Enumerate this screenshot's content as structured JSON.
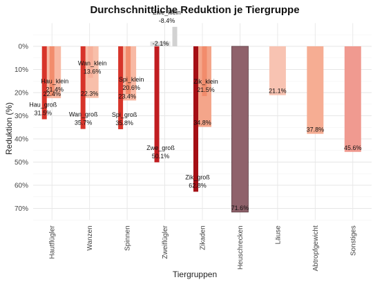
{
  "chart_data": {
    "type": "bar",
    "title": "Durchschnittliche Reduktion je Tiergruppe",
    "xlabel": "Tiergruppen",
    "ylabel": "Reduktion (%)",
    "y_direction": "reversed",
    "ylim": [
      -10,
      75
    ],
    "y_ticks": [
      "0%",
      "10%",
      "20%",
      "30%",
      "40%",
      "50%",
      "60%",
      "70%"
    ],
    "grid": true,
    "categories": [
      "Hautflügler",
      "Wanzen",
      "Spinnen",
      "Zweiflügler",
      "Zikaden",
      "Heuschrecken",
      "Läuse",
      "Abtropfgewicht",
      "Sonstiges"
    ],
    "series": [
      {
        "bars": [
          {
            "category": "Hautflügler",
            "label": "Hau_klein",
            "value": 21.4,
            "value_label": "21.4%",
            "color": "#f28c6c"
          },
          {
            "category": "Hautflügler",
            "label": "Hau_groß",
            "value": 31.5,
            "value_label": "31.5%",
            "color": "#d7342a"
          },
          {
            "category": "Wanzen",
            "label": "Wan_klein",
            "value": 13.6,
            "value_label": "13.6%",
            "color": "#f7b09a"
          },
          {
            "category": "Wanzen",
            "label": "Wan_groß",
            "value": 35.7,
            "value_label": "35.7%",
            "color": "#d7342a"
          },
          {
            "category": "Spinnen",
            "label": "Spi_klein",
            "value": 20.6,
            "value_label": "20.6%",
            "color": "#f28c6c"
          },
          {
            "category": "Spinnen",
            "label": "Spi_groß",
            "value": 35.8,
            "value_label": "35.8%",
            "color": "#d7342a"
          },
          {
            "category": "Zweiflügler",
            "label": "Zwe_klein",
            "value": -8.4,
            "value_label": "-8.4%",
            "color": "#d2d2d2"
          },
          {
            "category": "Zweiflügler",
            "label": "Zwe_groß",
            "value": 50.1,
            "value_label": "50.1%",
            "color": "#c11d21"
          },
          {
            "category": "Zikaden",
            "label": "Zik_klein",
            "value": 21.5,
            "value_label": "21.5%",
            "color": "#f28c6c"
          },
          {
            "category": "Zikaden",
            "label": "Zik_groß",
            "value": 62.8,
            "value_label": "62.8%",
            "color": "#a50f15"
          }
        ]
      },
      {
        "bars": [
          {
            "category": "Hautflügler",
            "value": 22.4,
            "value_label": "22.4%",
            "color": "#f8b9a4"
          },
          {
            "category": "Wanzen",
            "value": 22.3,
            "value_label": "22.3%",
            "color": "#f8bfaa"
          },
          {
            "category": "Spinnen",
            "value": 23.4,
            "value_label": "23.4%",
            "color": "#f8b9a4"
          },
          {
            "category": "Zweiflügler",
            "value": -2.1,
            "value_label": "-2.1%",
            "color": "#e3e3e3"
          },
          {
            "category": "Zikaden",
            "value": 34.8,
            "value_label": "34.8%",
            "color": "#f4a58a"
          },
          {
            "category": "Heuschrecken",
            "value": 71.6,
            "value_label": "71.6%",
            "color": "#8f626b"
          },
          {
            "category": "Läuse",
            "value": 21.1,
            "value_label": "21.1%",
            "color": "#f8c3b2"
          },
          {
            "category": "Abtropfgewicht",
            "value": 37.8,
            "value_label": "37.8%",
            "color": "#f6ad93"
          },
          {
            "category": "Sonstiges",
            "value": 45.6,
            "value_label": "45.6%",
            "color": "#f09a90"
          }
        ]
      }
    ]
  }
}
